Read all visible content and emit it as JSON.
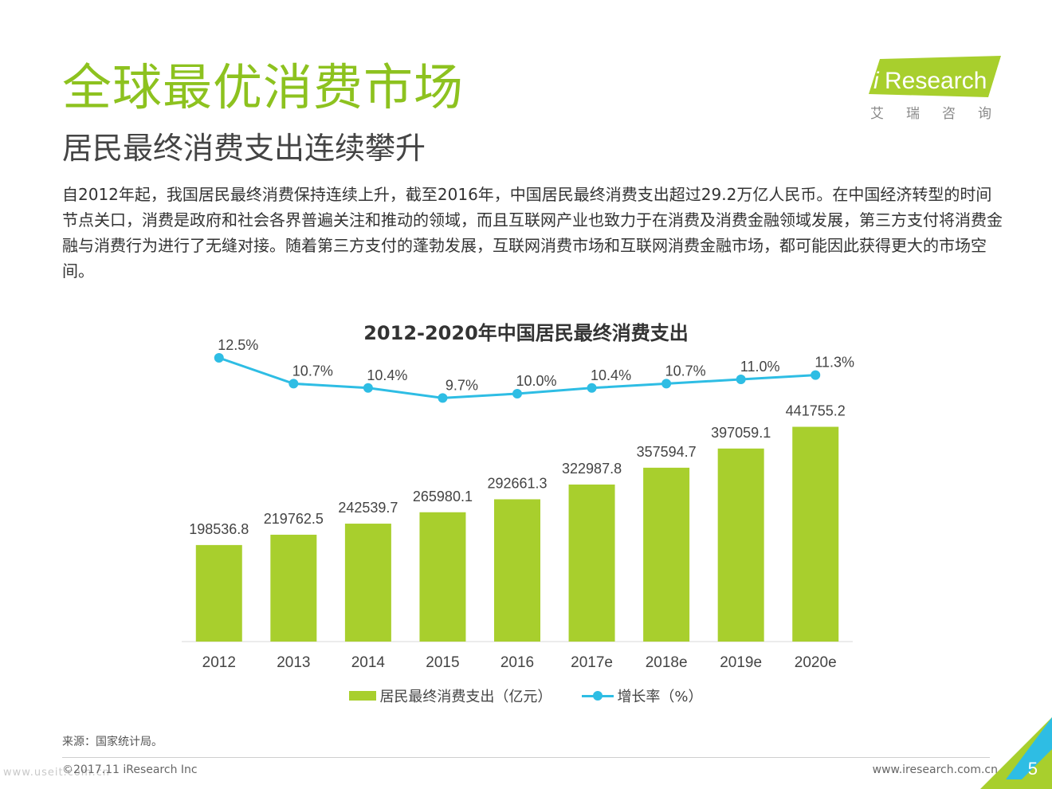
{
  "header": {
    "title": "全球最优消费市场",
    "subtitle": "居民最终消费支出连续攀升",
    "paragraph": "自2012年起，我国居民最终消费保持连续上升，截至2016年，中国居民最终消费支出超过29.2万亿人民币。在中国经济转型的时间节点关口，消费是政府和社会各界普遍关注和推动的领域，而且互联网产业也致力于在消费及消费金融领域发展，第三方支付将消费金融与消费行为进行了无缝对接。随着第三方支付的蓬勃发展，互联网消费市场和互联网消费金融市场，都可能因此获得更大的市场空间。"
  },
  "logo": {
    "brand_i": "i",
    "brand_rest": "Research",
    "cn": "艾瑞咨询"
  },
  "chart_data": {
    "type": "bar",
    "title": "2012-2020年中国居民最终消费支出",
    "categories": [
      "2012",
      "2013",
      "2014",
      "2015",
      "2016",
      "2017e",
      "2018e",
      "2019e",
      "2020e"
    ],
    "series": [
      {
        "name": "居民最终消费支出（亿元）",
        "kind": "bar",
        "values": [
          198536.8,
          219762.5,
          242539.7,
          265980.1,
          292661.3,
          322987.8,
          357594.7,
          397059.1,
          441755.2
        ],
        "labels": [
          "198536.8",
          "219762.5",
          "242539.7",
          "265980.1",
          "292661.3",
          "322987.8",
          "357594.7",
          "397059.1",
          "441755.2"
        ]
      },
      {
        "name": "增长率（%）",
        "kind": "line",
        "values": [
          12.5,
          10.7,
          10.4,
          9.7,
          10.0,
          10.4,
          10.7,
          11.0,
          11.3
        ],
        "labels": [
          "12.5%",
          "10.7%",
          "10.4%",
          "9.7%",
          "10.0%",
          "10.4%",
          "10.7%",
          "11.0%",
          "11.3%"
        ]
      }
    ],
    "ylim": [
      0,
      500000
    ],
    "y2lim": [
      7,
      13
    ],
    "xlabel": "",
    "ylabel": "",
    "legend": "bottom"
  },
  "colors": {
    "bar": "#a8cf2d",
    "line": "#2ebde4",
    "title_green": "#8dc21f"
  },
  "footer": {
    "source": "来源：国家统计局。",
    "copyright": "©2017.11 iResearch Inc",
    "website": "www.iresearch.com.cn",
    "page": "5",
    "watermark": "www.useit.com.cn"
  }
}
